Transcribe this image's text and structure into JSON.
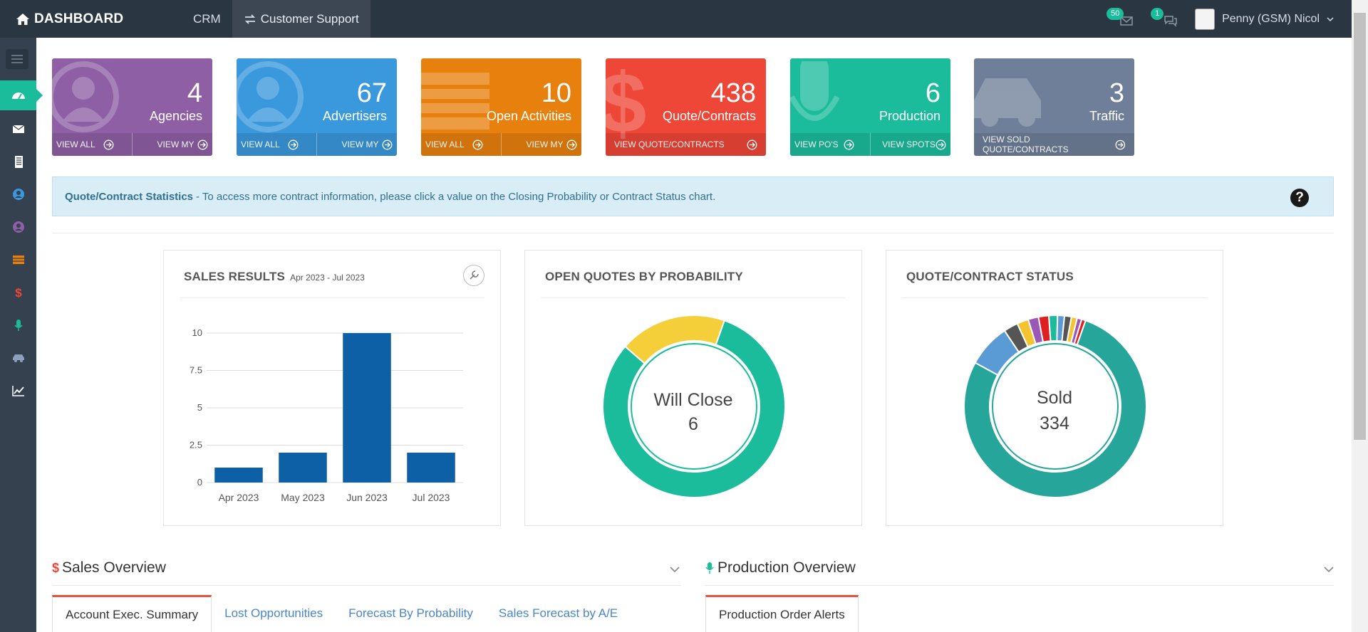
{
  "topbar": {
    "brand": "DASHBOARD",
    "nav": [
      "CRM",
      "Customer Support"
    ],
    "messages_count": "50",
    "chat_count": "1",
    "user_name": "Penny (GSM) Nicol"
  },
  "tiles": [
    {
      "value": "4",
      "label": "Agencies",
      "color": "#8e5fa5",
      "links": [
        "VIEW ALL",
        "VIEW MY"
      ],
      "icon": "user-icon"
    },
    {
      "value": "67",
      "label": "Advertisers",
      "color": "#3a98dc",
      "links": [
        "VIEW ALL",
        "VIEW MY"
      ],
      "icon": "user-icon"
    },
    {
      "value": "10",
      "label": "Open Activities",
      "color": "#e8800e",
      "links": [
        "VIEW ALL",
        "VIEW MY"
      ],
      "icon": "list-icon"
    },
    {
      "value": "438",
      "label": "Quote/Contracts",
      "color": "#ee4637",
      "links": [
        "VIEW QUOTE/CONTRACTS"
      ],
      "icon": "dollar-icon"
    },
    {
      "value": "6",
      "label": "Production",
      "color": "#1bbc9b",
      "links": [
        "VIEW PO'S",
        "VIEW SPOTS"
      ],
      "icon": "microphone-icon"
    },
    {
      "value": "3",
      "label": "Traffic",
      "color": "#6f7f99",
      "links": [
        "VIEW SOLD QUOTE/CONTRACTS"
      ],
      "icon": "car-icon"
    }
  ],
  "info": {
    "title": "Quote/Contract Statistics",
    "text": " - To access more contract information, please click a value on the Closing Probability or Contract Status chart."
  },
  "sales_results": {
    "title": "SALES RESULTS",
    "range": "Apr 2023 - Jul 2023"
  },
  "open_quotes": {
    "title": "OPEN QUOTES BY PROBABILITY",
    "center_label": "Will Close",
    "center_value": "6"
  },
  "contract_status": {
    "title": "QUOTE/CONTRACT STATUS",
    "center_label": "Sold",
    "center_value": "334"
  },
  "chart_data": [
    {
      "type": "bar",
      "title": "SALES RESULTS",
      "categories": [
        "Apr 2023",
        "May 2023",
        "Jun 2023",
        "Jul 2023"
      ],
      "values": [
        1,
        2,
        10,
        2
      ],
      "yticks": [
        "0",
        "2.5",
        "5",
        "7.5",
        "10"
      ],
      "ylim": [
        0,
        10
      ],
      "color": "#0d5fa6",
      "grid": true
    },
    {
      "type": "pie",
      "title": "OPEN QUOTES BY PROBABILITY",
      "slices": [
        {
          "value": 0.81,
          "color": "#1bbc9b"
        },
        {
          "value": 0.19,
          "color": "#f4cf3a"
        }
      ]
    },
    {
      "type": "pie",
      "title": "QUOTE/CONTRACT STATUS",
      "slices": [
        {
          "value": 0.76,
          "color": "#26a69a"
        },
        {
          "value": 0.075,
          "color": "#5b9bd5"
        },
        {
          "value": 0.025,
          "color": "#555555"
        },
        {
          "value": 0.02,
          "color": "#f4c430"
        },
        {
          "value": 0.018,
          "color": "#9b59b6"
        },
        {
          "value": 0.018,
          "color": "#e02020"
        },
        {
          "value": 0.015,
          "color": "#1bbc9b"
        },
        {
          "value": 0.012,
          "color": "#5b9bd5"
        },
        {
          "value": 0.012,
          "color": "#555555"
        },
        {
          "value": 0.01,
          "color": "#f4c430"
        },
        {
          "value": 0.008,
          "color": "#9b59b6"
        },
        {
          "value": 0.007,
          "color": "#e02020"
        }
      ]
    }
  ],
  "sales_overview": {
    "title": "Sales Overview",
    "tabs": [
      "Account Exec. Summary",
      "Lost Opportunities",
      "Forecast By Probability",
      "Sales Forecast by A/E"
    ]
  },
  "production_overview": {
    "title": "Production Overview",
    "tabs": [
      "Production Order Alerts"
    ]
  }
}
